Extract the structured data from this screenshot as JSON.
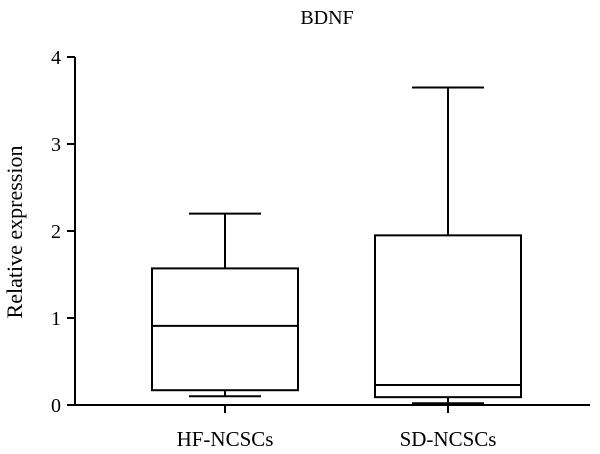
{
  "chart_data": {
    "type": "box",
    "title": "BDNF",
    "xlabel": "",
    "ylabel": "Relative expression",
    "ylim": [
      0,
      4
    ],
    "yticks": [
      0,
      1,
      2,
      3,
      4
    ],
    "grid": false,
    "categories": [
      "HF-NCSCs",
      "SD-NCSCs"
    ],
    "boxes": [
      {
        "category": "HF-NCSCs",
        "min": 0.1,
        "q1": 0.17,
        "median": 0.91,
        "q3": 1.57,
        "max": 2.2
      },
      {
        "category": "SD-NCSCs",
        "min": 0.02,
        "q1": 0.09,
        "median": 0.23,
        "q3": 1.95,
        "max": 3.65
      }
    ]
  }
}
